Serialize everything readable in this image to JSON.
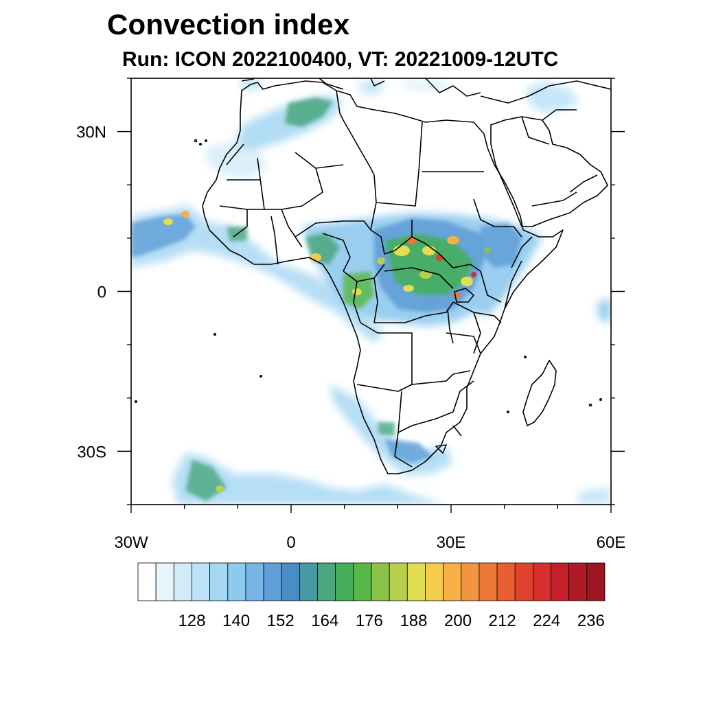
{
  "title": "Convection index",
  "subtitle": "Run: ICON 2022100400,  VT: 20221009-12UTC",
  "map": {
    "lon_range": [
      -30,
      60
    ],
    "lat_range": [
      -40,
      40
    ],
    "lon_ticks": [
      {
        "value": -30,
        "label": "30W"
      },
      {
        "value": 0,
        "label": "0"
      },
      {
        "value": 30,
        "label": "30E"
      },
      {
        "value": 60,
        "label": "60E"
      }
    ],
    "lat_ticks": [
      {
        "value": 30,
        "label": "30N"
      },
      {
        "value": 0,
        "label": "0"
      },
      {
        "value": -30,
        "label": "30S"
      }
    ]
  },
  "colorbar": {
    "labels": [
      "128",
      "140",
      "152",
      "164",
      "176",
      "188",
      "200",
      "212",
      "224",
      "236"
    ],
    "colors": [
      "#ffffff",
      "#e8f5fd",
      "#d2ecfa",
      "#bce3f7",
      "#a4d8f3",
      "#8ec9ee",
      "#76b5e4",
      "#5f9ed6",
      "#4a8dc6",
      "#4a9aa6",
      "#4aa67e",
      "#46ae5a",
      "#5ab84a",
      "#8ac24a",
      "#b6d04e",
      "#e2de54",
      "#f4cc4e",
      "#f6b046",
      "#f49440",
      "#ee7838",
      "#e85e30",
      "#e04430",
      "#d82e2e",
      "#c4202a",
      "#ae1a26",
      "#9c1622"
    ]
  }
}
